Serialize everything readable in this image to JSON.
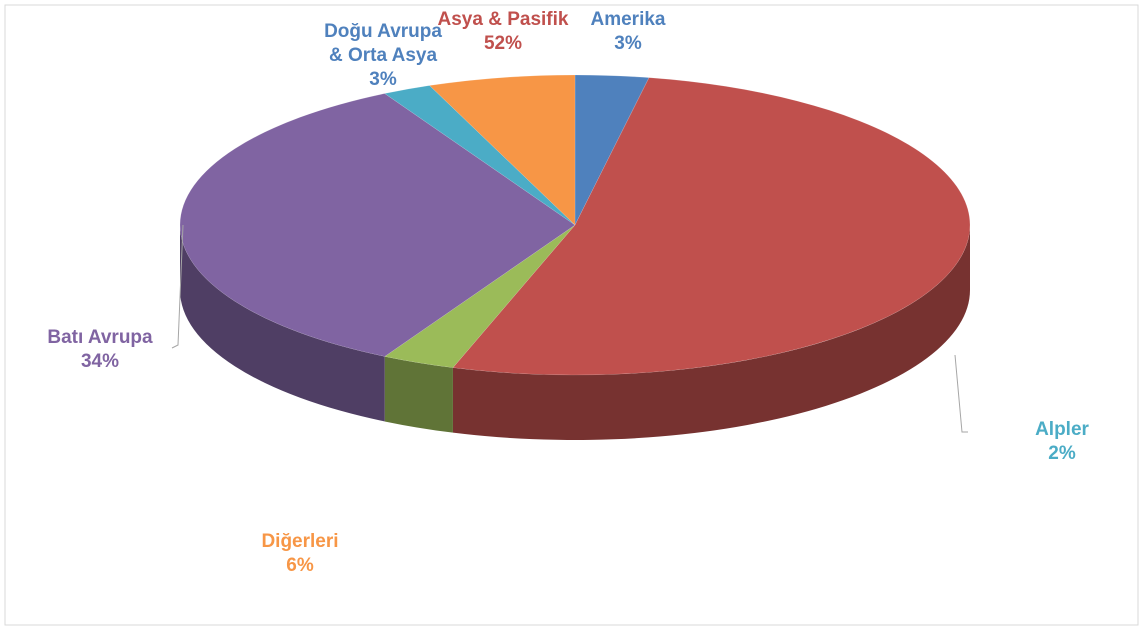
{
  "chart_data": {
    "type": "pie3d",
    "categories": [
      "Amerika",
      "Asya & Pasifik",
      "Doğu Avrupa & Orta Asya",
      "Batı Avrupa",
      "Alpler",
      "Diğerleri"
    ],
    "values": [
      3,
      52,
      3,
      34,
      2,
      6
    ],
    "value_labels": [
      "3%",
      "52%",
      "3%",
      "34%",
      "2%",
      "6%"
    ],
    "colors": [
      "#4f81bd",
      "#c0504d",
      "#9bbb59",
      "#8064a2",
      "#4bacc6",
      "#f79646"
    ],
    "label_colors": [
      "#4f81bd",
      "#c0504d",
      "#4f81bd",
      "#8064a2",
      "#4bacc6",
      "#f79646"
    ]
  }
}
